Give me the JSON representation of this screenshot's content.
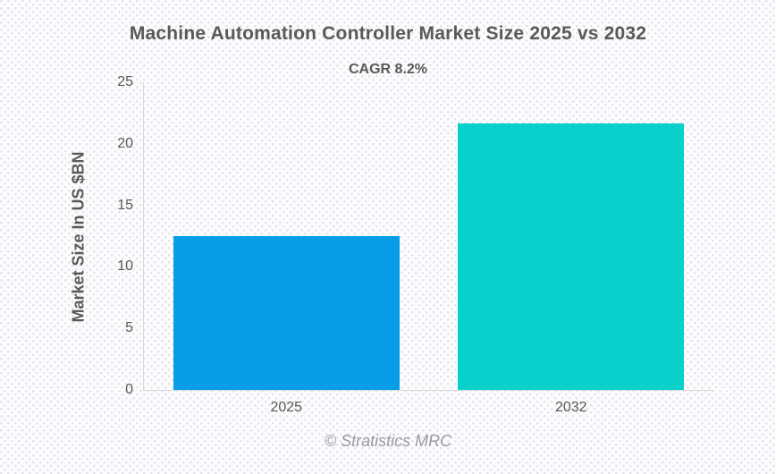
{
  "header": {
    "title": "Machine Automation Controller Market Size 2025 vs 2032",
    "subtitle": "CAGR 8.2%"
  },
  "footer": {
    "attribution": "© Stratistics MRC"
  },
  "chart_data": {
    "type": "bar",
    "title": "Machine Automation Controller Market Size 2025 vs 2032",
    "subtitle": "CAGR 8.2%",
    "categories": [
      "2025",
      "2032"
    ],
    "values": [
      12.47,
      21.68
    ],
    "xlabel": "",
    "ylabel": "Market Size In US $BN",
    "ylim": [
      0,
      25
    ],
    "yticks": [
      0,
      5,
      10,
      15,
      20,
      25
    ],
    "grid": false,
    "legend": null,
    "bar_colors": [
      "#099de8",
      "#08d0ca"
    ]
  },
  "colors": {
    "background": "#fbfcfd",
    "background_dot": "#e3e5e9",
    "text": "#595959",
    "axis": "#d9d9d9",
    "footer_text": "#9b9b9f",
    "bar_2025": "#099de8",
    "bar_2032": "#08d0ca"
  }
}
